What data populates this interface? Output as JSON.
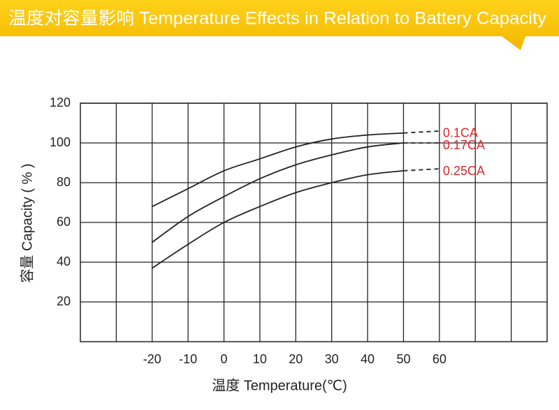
{
  "chart_data": {
    "type": "line",
    "title": "温度对容量影响 Temperature Effects in Relation to Battery Capacity",
    "x_label": "温度 Temperature(℃)",
    "y_label": "容量 Capacity ( % )",
    "x": [
      -20,
      -10,
      0,
      10,
      20,
      30,
      40,
      50,
      60
    ],
    "series": [
      {
        "name": "0.1CA",
        "color": "#222222",
        "label_color": "#e0262b",
        "values": [
          68,
          77,
          86,
          92,
          98,
          102,
          104,
          105,
          106
        ]
      },
      {
        "name": "0.17CA",
        "color": "#222222",
        "label_color": "#e0262b",
        "values": [
          50,
          63,
          73,
          82,
          89,
          94,
          98,
          100,
          100
        ]
      },
      {
        "name": "0.25CA",
        "color": "#222222",
        "label_color": "#e0262b",
        "values": [
          37,
          49,
          60,
          68,
          75,
          80,
          84,
          86,
          87
        ]
      }
    ],
    "xlim": [
      -40,
      90
    ],
    "xticks": [
      {
        "value": -30,
        "label": null
      },
      -20,
      -10,
      0,
      10,
      20,
      30,
      40,
      50,
      60,
      {
        "value": 70,
        "label": null
      },
      {
        "value": 80,
        "label": null
      }
    ],
    "ylim": [
      0,
      120
    ],
    "yticks": [
      20,
      40,
      60,
      80,
      100,
      120
    ],
    "grid": true
  }
}
